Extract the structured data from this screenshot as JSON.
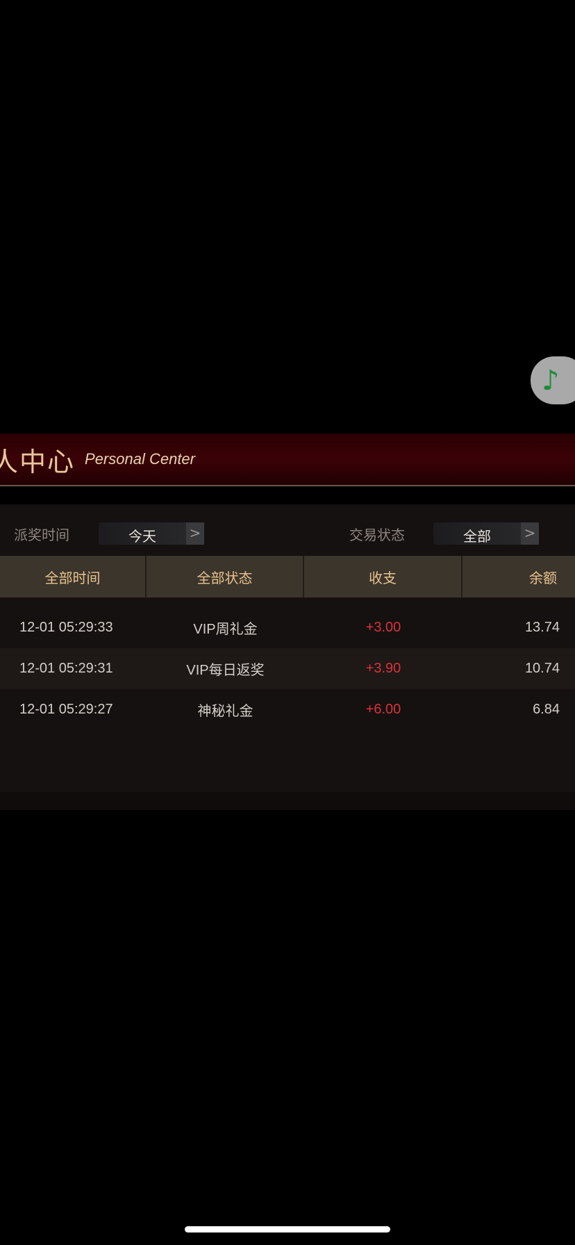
{
  "music_button": {
    "icon": "music-note-icon",
    "glyph": "♪"
  },
  "banner": {
    "title_cn": "人中心",
    "title_en": "Personal Center"
  },
  "filters": {
    "time_label": "派奖时间",
    "time_value": "今天",
    "status_label": "交易状态",
    "status_value": "全部",
    "arrow": ">"
  },
  "table": {
    "headers": [
      "全部时间",
      "全部状态",
      "收支",
      "余额"
    ],
    "rows": [
      {
        "time": "12-01 05:29:33",
        "type": "VIP周礼金",
        "amount": "+3.00",
        "balance": "13.74"
      },
      {
        "time": "12-01 05:29:31",
        "type": "VIP每日返奖",
        "amount": "+3.90",
        "balance": "10.74"
      },
      {
        "time": "12-01 05:29:27",
        "type": "神秘礼金",
        "amount": "+6.00",
        "balance": "6.84"
      }
    ]
  },
  "colors": {
    "accent_gold": "#e7c28d",
    "amount_red": "#d8333a",
    "banner_red": "#3b0206"
  }
}
